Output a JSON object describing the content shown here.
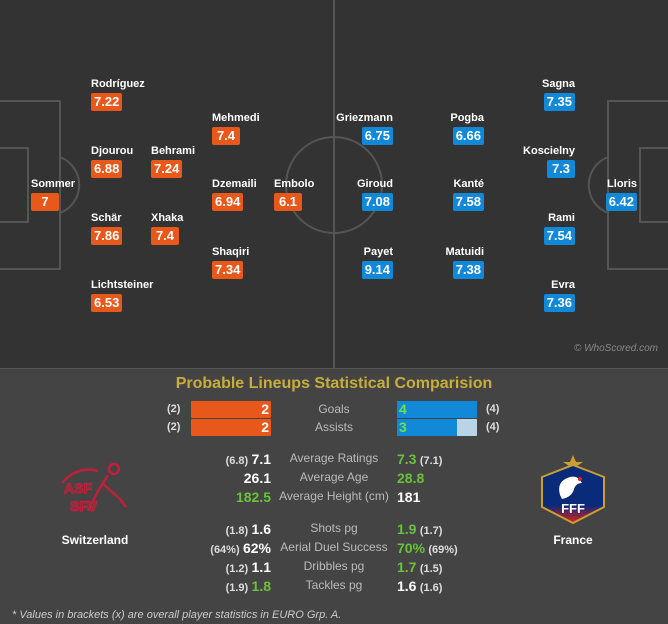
{
  "pitch": {
    "switzerland": [
      {
        "name": "Rodríguez",
        "rating": "7.22"
      },
      {
        "name": "Djourou",
        "rating": "6.88"
      },
      {
        "name": "Behrami",
        "rating": "7.24"
      },
      {
        "name": "Sommer",
        "rating": "7"
      },
      {
        "name": "Schär",
        "rating": "7.86"
      },
      {
        "name": "Xhaka",
        "rating": "7.4"
      },
      {
        "name": "Lichtsteiner",
        "rating": "6.53"
      },
      {
        "name": "Mehmedi",
        "rating": "7.4"
      },
      {
        "name": "Dzemaili",
        "rating": "6.94"
      },
      {
        "name": "Embolo",
        "rating": "6.1"
      },
      {
        "name": "Shaqiri",
        "rating": "7.34"
      }
    ],
    "france": [
      {
        "name": "Griezmann",
        "rating": "6.75"
      },
      {
        "name": "Giroud",
        "rating": "7.08"
      },
      {
        "name": "Payet",
        "rating": "9.14"
      },
      {
        "name": "Pogba",
        "rating": "6.66"
      },
      {
        "name": "Kanté",
        "rating": "7.58"
      },
      {
        "name": "Matuidi",
        "rating": "7.38"
      },
      {
        "name": "Sagna",
        "rating": "7.35"
      },
      {
        "name": "Koscielny",
        "rating": "7.3"
      },
      {
        "name": "Rami",
        "rating": "7.54"
      },
      {
        "name": "Evra",
        "rating": "7.36"
      },
      {
        "name": "Lloris",
        "rating": "6.42"
      }
    ],
    "copyright": "© WhoScored.com"
  },
  "comparison": {
    "title": "Probable Lineups Statistical Comparision",
    "bars": [
      {
        "label": "Goals",
        "left": "2",
        "left_overall": "(2)",
        "right": "4",
        "right_overall": "(4)",
        "right_fill_pct": 100
      },
      {
        "label": "Assists",
        "left": "2",
        "left_overall": "(2)",
        "right": "3",
        "right_overall": "(4)",
        "right_fill_pct": 75
      }
    ],
    "stats": [
      {
        "label": "Average Ratings",
        "left_overall": "(6.8)",
        "left": "7.1",
        "right": "7.3",
        "right_overall": "(7.1)",
        "winner": "right"
      },
      {
        "label": "Average Age",
        "left_overall": "",
        "left": "26.1",
        "right": "28.8",
        "right_overall": "",
        "winner": "right"
      },
      {
        "label": "Average Height (cm)",
        "left_overall": "",
        "left": "182.5",
        "right": "181",
        "right_overall": "",
        "winner": "left"
      },
      {
        "label": "Shots pg",
        "left_overall": "(1.8)",
        "left": "1.6",
        "right": "1.9",
        "right_overall": "(1.7)",
        "winner": "right"
      },
      {
        "label": "Aerial Duel Success",
        "left_overall": "(64%)",
        "left": "62%",
        "right": "70%",
        "right_overall": "(69%)",
        "winner": "right"
      },
      {
        "label": "Dribbles pg",
        "left_overall": "(1.2)",
        "left": "1.1",
        "right": "1.7",
        "right_overall": "(1.5)",
        "winner": "right"
      },
      {
        "label": "Tackles pg",
        "left_overall": "(1.9)",
        "left": "1.8",
        "right": "1.6",
        "right_overall": "(1.6)",
        "winner": "left"
      }
    ],
    "home_team": "Switzerland",
    "away_team": "France",
    "home_logo_text": "SFV ASF",
    "away_logo_text": "FFF",
    "footnote": "* Values in brackets (x) are overall player statistics in EURO Grp. A."
  },
  "colors": {
    "home": "#e8581a",
    "away": "#1289d8",
    "winner": "#6ac23a",
    "title": "#c7ae3a"
  }
}
